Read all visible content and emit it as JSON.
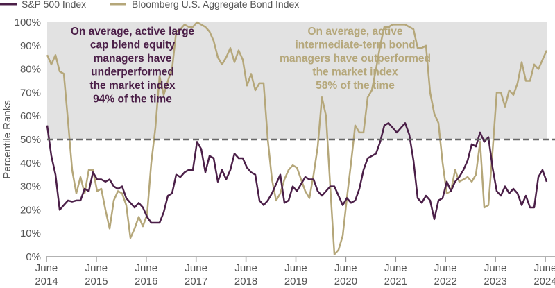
{
  "chart_data": {
    "type": "line",
    "title": "",
    "xlabel": "",
    "ylabel": "Percentile Ranks",
    "ylim": [
      0,
      100
    ],
    "yticks": [
      "0%",
      "10%",
      "20%",
      "30%",
      "40%",
      "50%",
      "60%",
      "70%",
      "80%",
      "90%",
      "100%"
    ],
    "xticks": [
      {
        "month": "June",
        "year": "2014"
      },
      {
        "month": "June",
        "year": "2015"
      },
      {
        "month": "June",
        "year": "2016"
      },
      {
        "month": "June",
        "year": "2017"
      },
      {
        "month": "June",
        "year": "2018"
      },
      {
        "month": "June",
        "year": "2019"
      },
      {
        "month": "June",
        "year": "2020"
      },
      {
        "month": "June",
        "year": "2021"
      },
      {
        "month": "June",
        "year": "2022"
      },
      {
        "month": "June",
        "year": "2023"
      },
      {
        "month": "June",
        "year": "2024"
      }
    ],
    "reference_line": {
      "value": 50,
      "style": "dashed",
      "color": "#666666"
    },
    "shaded_region": {
      "from": 50,
      "to": 100,
      "color": "#e2e2e2"
    },
    "legend_position": "top-left",
    "x": [
      "2014-06",
      "2014-07",
      "2014-08",
      "2014-09",
      "2014-10",
      "2014-11",
      "2014-12",
      "2015-01",
      "2015-02",
      "2015-03",
      "2015-04",
      "2015-05",
      "2015-06",
      "2015-07",
      "2015-08",
      "2015-09",
      "2015-10",
      "2015-11",
      "2015-12",
      "2016-01",
      "2016-02",
      "2016-03",
      "2016-04",
      "2016-05",
      "2016-06",
      "2016-07",
      "2016-08",
      "2016-09",
      "2016-10",
      "2016-11",
      "2016-12",
      "2017-01",
      "2017-02",
      "2017-03",
      "2017-04",
      "2017-05",
      "2017-06",
      "2017-07",
      "2017-08",
      "2017-09",
      "2017-10",
      "2017-11",
      "2017-12",
      "2018-01",
      "2018-02",
      "2018-03",
      "2018-04",
      "2018-05",
      "2018-06",
      "2018-07",
      "2018-08",
      "2018-09",
      "2018-10",
      "2018-11",
      "2018-12",
      "2019-01",
      "2019-02",
      "2019-03",
      "2019-04",
      "2019-05",
      "2019-06",
      "2019-07",
      "2019-08",
      "2019-09",
      "2019-10",
      "2019-11",
      "2019-12",
      "2020-01",
      "2020-02",
      "2020-03",
      "2020-04",
      "2020-05",
      "2020-06",
      "2020-07",
      "2020-08",
      "2020-09",
      "2020-10",
      "2020-11",
      "2020-12",
      "2021-01",
      "2021-02",
      "2021-03",
      "2021-04",
      "2021-05",
      "2021-06",
      "2021-07",
      "2021-08",
      "2021-09",
      "2021-10",
      "2021-11",
      "2021-12",
      "2022-01",
      "2022-02",
      "2022-03",
      "2022-04",
      "2022-05",
      "2022-06",
      "2022-07",
      "2022-08",
      "2022-09",
      "2022-10",
      "2022-11",
      "2022-12",
      "2023-01",
      "2023-02",
      "2023-03",
      "2023-04",
      "2023-05",
      "2023-06",
      "2023-07",
      "2023-08",
      "2023-09",
      "2023-10",
      "2023-11",
      "2023-12",
      "2024-01",
      "2024-02",
      "2024-03",
      "2024-04",
      "2024-05",
      "2024-06"
    ],
    "series": [
      {
        "name": "S&P 500 Index",
        "color": "#4b1f48",
        "values": [
          56,
          43,
          35,
          20,
          22,
          24,
          23.5,
          24,
          24,
          29,
          28,
          36,
          33,
          33,
          32,
          33,
          30,
          29,
          30,
          25,
          23,
          21,
          23,
          21,
          17,
          14.5,
          14.5,
          14.5,
          19,
          26,
          27,
          35,
          34,
          36,
          37,
          37,
          49,
          46,
          36,
          43,
          42,
          32,
          37,
          33,
          37,
          44,
          42,
          42,
          38,
          36,
          35,
          24,
          22,
          24,
          27,
          31,
          35,
          23,
          24,
          30,
          28,
          31,
          34,
          33,
          33,
          28,
          26,
          28,
          30,
          30,
          26,
          22,
          25,
          23,
          24,
          29,
          37,
          42,
          43,
          44,
          49,
          56,
          57,
          55,
          53,
          55,
          57,
          52,
          41,
          25,
          23,
          26,
          24,
          16,
          24,
          25,
          32,
          28,
          32,
          34,
          37,
          41,
          48,
          47,
          53,
          49,
          51,
          38,
          28,
          26,
          30,
          27,
          29,
          27,
          22,
          26,
          21,
          21,
          34,
          37,
          32
        ]
      },
      {
        "name": "Bloomberg U.S. Aggregate Bond Index",
        "color": "#b5a77a",
        "values": [
          86,
          82,
          86,
          79,
          78,
          58,
          37,
          27,
          34,
          27,
          37,
          37,
          28,
          29,
          20,
          12,
          24,
          28,
          27,
          22,
          8,
          12,
          17,
          13,
          18,
          40,
          55,
          77,
          69,
          75,
          80,
          96,
          97,
          99,
          98,
          98,
          100,
          99,
          98,
          96,
          92,
          85,
          82,
          85,
          89,
          83,
          88,
          84,
          73,
          78,
          71,
          74,
          74,
          50,
          33,
          24,
          27,
          33,
          37,
          39,
          38,
          33,
          28,
          25,
          35,
          47,
          68,
          60,
          30,
          1,
          3,
          9,
          25,
          40,
          56,
          53,
          53,
          68,
          71,
          80,
          90,
          98,
          98,
          99,
          99,
          99,
          99,
          98,
          97,
          89,
          89,
          90,
          70,
          61,
          57,
          40,
          27,
          28,
          37,
          32,
          33,
          34,
          32,
          35,
          49,
          21,
          22,
          45,
          70,
          70,
          64,
          71,
          69,
          74,
          83,
          75,
          75,
          82,
          80,
          84,
          88
        ]
      }
    ],
    "annotations": [
      {
        "color": "#4b1f48",
        "lines": [
          "On average, active large",
          "cap blend equity",
          "managers have",
          "underperformed",
          "the market index",
          "94% of the time"
        ]
      },
      {
        "color": "#b5a77a",
        "lines": [
          "On average, active",
          "intermediate-term bond",
          "managers have outperformed",
          "the market index",
          "58% of the time"
        ]
      }
    ]
  }
}
